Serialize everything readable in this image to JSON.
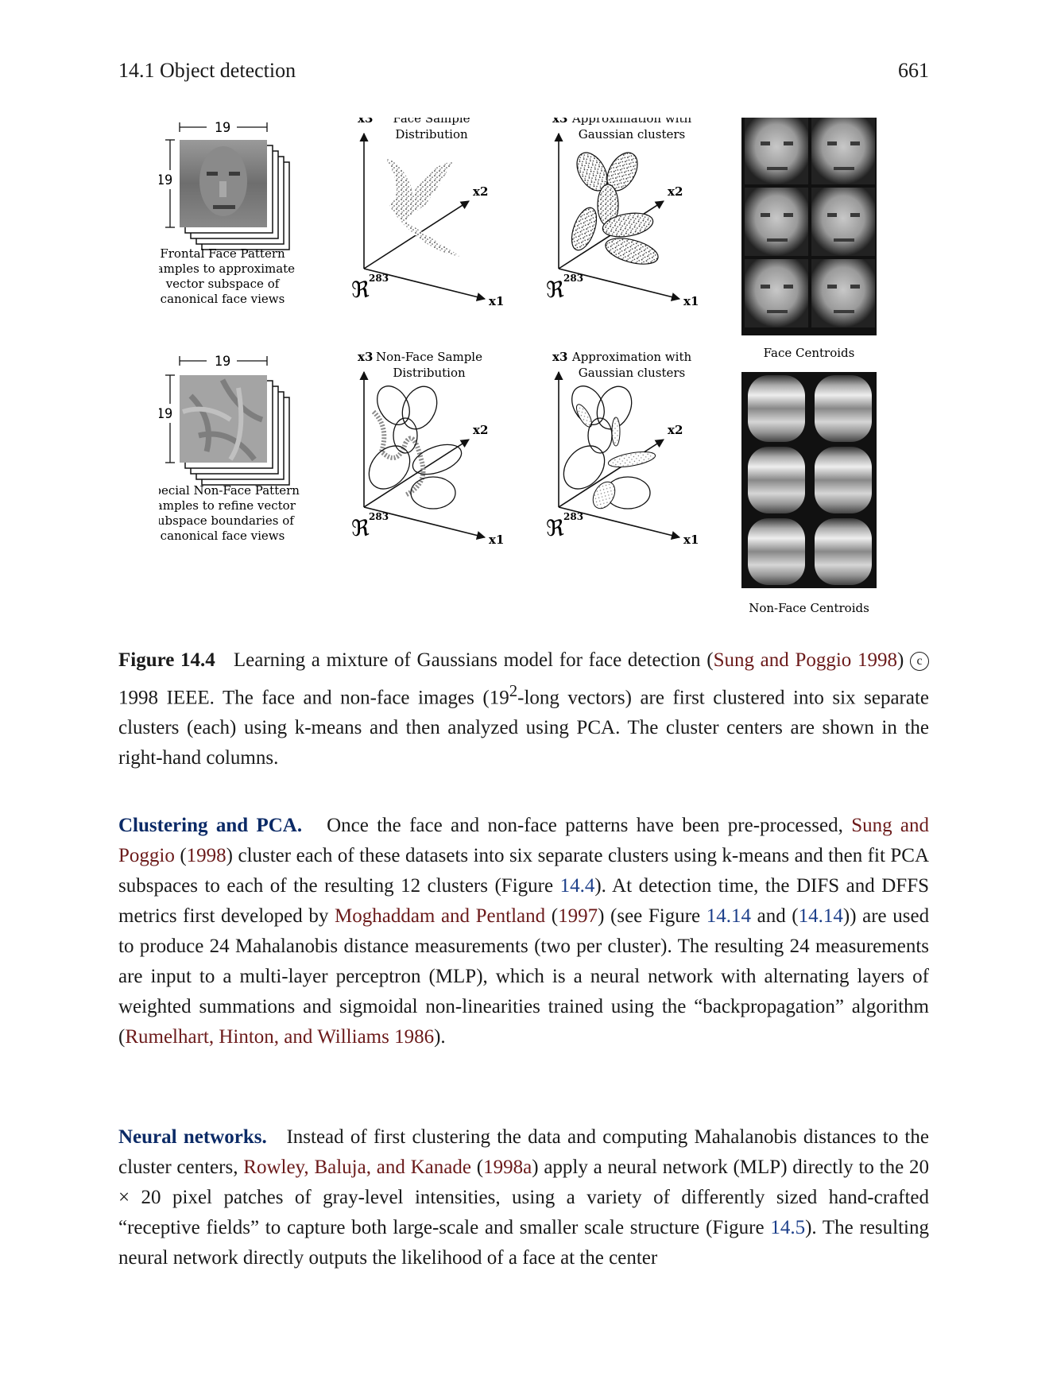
{
  "header": {
    "section": "14.1 Object detection",
    "page_number": "661"
  },
  "figure": {
    "face_dim_top": "19",
    "face_dim_side": "19",
    "nonface_dim_top": "19",
    "nonface_dim_side": "19",
    "face_pattern_caption": [
      "Frontal Face Pattern",
      "samples to approximate",
      "vector subspace of",
      "canonical face views"
    ],
    "nonface_pattern_caption": [
      "Special Non-Face Pattern",
      "samples to refine vector",
      "subspace boundaries of",
      "canonical face views"
    ],
    "plot_face_sample": [
      "Face Sample",
      "Distribution"
    ],
    "plot_face_approx": [
      "Approximation with",
      "Gaussian clusters"
    ],
    "plot_nonface_sample": [
      "Non-Face Sample",
      "Distribution"
    ],
    "plot_nonface_approx": [
      "Approximation with",
      "Gaussian clusters"
    ],
    "axis_x1": "x1",
    "axis_x2": "x2",
    "axis_x3": "x3",
    "space_symbol": "ℜ",
    "space_exponent": "283",
    "face_centroids_label": "Face Centroids",
    "nonface_centroids_label": "Non-Face Centroids"
  },
  "caption": {
    "label": "Figure 14.4",
    "text_1": "Learning a mixture of Gaussians model for face detection (",
    "cite_1": "Sung and Poggio 1998",
    "text_2": ") ",
    "copyright_symbol": "c",
    "text_3": " 1998 IEEE. The face and non-face images (19",
    "superscript": "2",
    "text_4": "-long vectors) are first clustered into six separate clusters (each) using k-means and then analyzed using PCA. The cluster centers are shown in the right-hand columns."
  },
  "paragraph_1": {
    "heading": "Clustering and PCA.",
    "t1": "Once the face and non-face patterns have been pre-processed,",
    "c1": "Sung and Poggio",
    "t2": "(",
    "c2": "1998",
    "t3": ") cluster each of these datasets into six separate clusters using k-means and then fit PCA subspaces to each of the resulting 12 clusters (Figure",
    "r1": "14.4",
    "t4": "). At detection time, the DIFS and DFFS metrics first developed by",
    "c3": "Moghaddam and Pentland",
    "t5": "(",
    "c4": "1997",
    "t6": ") (see Figure",
    "r2": "14.14",
    "t7": "and (",
    "r3": "14.14",
    "t8": ")) are used to produce 24 Mahalanobis distance measurements (two per cluster). The resulting 24 measurements are input to a multi-layer perceptron (MLP), which is a neural network with alternating layers of weighted summations and sigmoidal non-linearities trained using the “backpropagation” algorithm (",
    "c5": "Rumelhart, Hinton, and Williams 1986",
    "t9": ")."
  },
  "paragraph_2": {
    "heading": "Neural networks.",
    "t1": "Instead of first clustering the data and computing Mahalanobis distances to the cluster centers,",
    "c1": "Rowley, Baluja, and Kanade",
    "t2": "(",
    "c2": "1998a",
    "t3": ") apply a neural network (MLP) directly to the 20 × 20 pixel patches of gray-level intensities, using a variety of differently sized hand-crafted “receptive fields” to capture both large-scale and smaller scale structure (Figure",
    "r1": "14.5",
    "t4": "). The resulting neural network directly outputs the likelihood of a face at the center"
  }
}
